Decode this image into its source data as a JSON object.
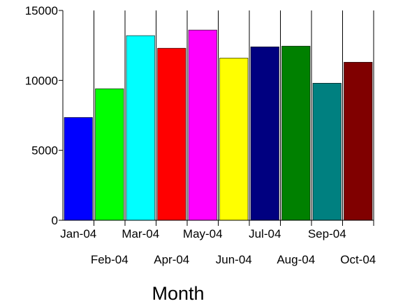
{
  "chart_data": {
    "type": "bar",
    "title": "",
    "xlabel": "Month",
    "ylabel": "",
    "ylim": [
      0,
      15000
    ],
    "yticks": [
      "0",
      "5000",
      "10000",
      "15000"
    ],
    "categories": [
      "Jan-04",
      "Feb-04",
      "Mar-04",
      "Apr-04",
      "May-04",
      "Jun-04",
      "Jul-04",
      "Aug-04",
      "Sep-04",
      "Oct-04"
    ],
    "values": [
      7350,
      9400,
      13200,
      12300,
      13600,
      11600,
      12400,
      12450,
      9800,
      11300
    ],
    "colors": [
      "#0000ff",
      "#00ff00",
      "#00ffff",
      "#ff0000",
      "#ff00ff",
      "#ffff00",
      "#000080",
      "#008000",
      "#008080",
      "#800000"
    ],
    "grid": "vertical lines between categories",
    "legend": "none"
  }
}
